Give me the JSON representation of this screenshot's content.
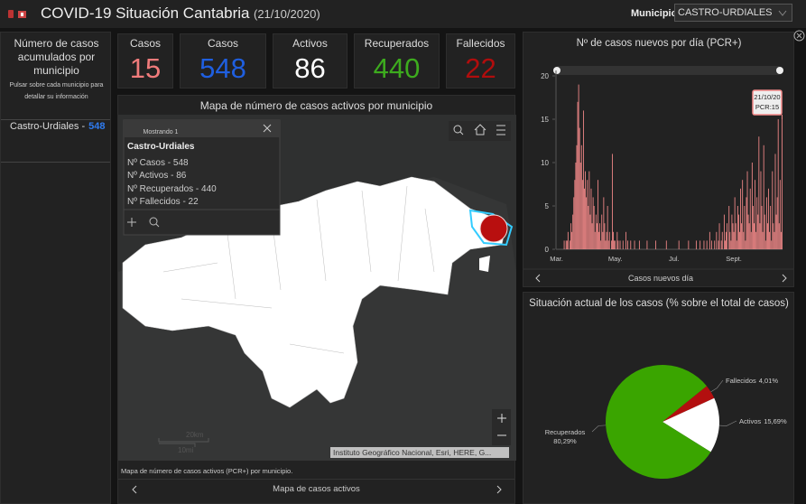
{
  "header": {
    "title": "COVID-19 Situación Cantabria",
    "date": "(21/10/2020)",
    "selector_label": "Municipio",
    "selector_value": "CASTRO-URDIALES"
  },
  "left_panel": {
    "title": "Número de casos acumulados por municipio",
    "hint": "Pulsar sobre cada municipio para detallar su información",
    "items": [
      {
        "label": "Castro-Urdiales -",
        "value": 548,
        "color": "#2f7bf0"
      }
    ]
  },
  "indicators": [
    {
      "label": "Casos",
      "value": 15,
      "color": "#f07b7b"
    },
    {
      "label": "Casos",
      "value": 548,
      "color": "#1f5fe0"
    },
    {
      "label": "Activos",
      "value": 86,
      "color": "#ffffff"
    },
    {
      "label": "Recuperados",
      "value": 440,
      "color": "#3dab1e"
    },
    {
      "label": "Fallecidos",
      "value": 22,
      "color": "#b00d0d"
    }
  ],
  "map": {
    "title": "Mapa de número de casos activos por municipio",
    "popup": {
      "header": "Mostrando 1",
      "title": "Castro-Urdiales",
      "lines": [
        "Nº Casos - 548",
        "Nº Activos - 86",
        "Nº Recuperados - 440",
        "Nº Fallecidos - 22"
      ]
    },
    "scale": [
      "20km",
      "10mi"
    ],
    "attribution": "Instituto Geográfico Nacional, Esri, HERE, G...",
    "caption": "Mapa de número de casos activos (PCR+) por municipio.",
    "footer": "Mapa de casos activos"
  },
  "chart_data": [
    {
      "type": "bar",
      "title": "Nº de casos nuevos por día (PCR+)",
      "footer": "Casos nuevos día",
      "annotation": [
        "21/10/20",
        "PCR:15"
      ],
      "color": "#f58a8a",
      "ylim": [
        0,
        20
      ],
      "yticks": [
        0,
        5,
        10,
        15,
        20
      ],
      "grid": false,
      "categories": [
        "Mar.",
        null,
        null,
        null,
        null,
        null,
        null,
        null,
        null,
        null,
        null,
        null,
        null,
        null,
        null,
        null,
        null,
        null,
        null,
        null,
        null,
        null,
        null,
        null,
        null,
        null,
        null,
        null,
        null,
        null,
        null,
        null,
        null,
        null,
        null,
        null,
        null,
        null,
        null,
        null,
        null,
        null,
        null,
        null,
        null,
        null,
        null,
        null,
        null,
        null,
        null,
        null,
        null,
        null,
        null,
        null,
        null,
        null,
        null,
        null,
        null,
        "May.",
        null,
        null,
        null,
        null,
        null,
        null,
        null,
        null,
        null,
        null,
        null,
        null,
        null,
        null,
        null,
        null,
        null,
        null,
        null,
        null,
        null,
        null,
        null,
        null,
        null,
        null,
        null,
        null,
        null,
        null,
        null,
        null,
        null,
        null,
        null,
        null,
        null,
        null,
        null,
        null,
        null,
        null,
        null,
        null,
        null,
        null,
        null,
        null,
        null,
        null,
        null,
        null,
        null,
        null,
        null,
        null,
        null,
        null,
        null,
        null,
        "Jul.",
        null,
        null,
        null,
        null,
        null,
        null,
        null,
        null,
        null,
        null,
        null,
        null,
        null,
        null,
        null,
        null,
        null,
        null,
        null,
        null,
        null,
        null,
        null,
        null,
        null,
        null,
        null,
        null,
        null,
        null,
        null,
        null,
        null,
        null,
        null,
        null,
        null,
        null,
        null,
        null,
        null,
        null,
        null,
        null,
        null,
        null,
        null,
        null,
        null,
        null,
        null,
        null,
        null,
        null,
        null,
        null,
        null,
        null,
        null,
        null,
        null,
        "Sept.",
        null,
        null,
        null,
        null,
        null,
        null,
        null,
        null,
        null,
        null,
        null,
        null,
        null,
        null,
        null,
        null,
        null,
        null,
        null,
        null,
        null,
        null,
        null,
        null,
        null,
        null,
        null,
        null,
        null,
        null,
        null,
        null,
        null,
        null,
        null,
        null,
        null,
        null,
        null,
        null,
        null,
        null,
        null,
        null,
        null,
        null,
        null,
        null,
        null,
        null
      ],
      "values": [
        0,
        0,
        0,
        0,
        0,
        0,
        0,
        0,
        1,
        0,
        1,
        1,
        2,
        0,
        1,
        3,
        2,
        4,
        6,
        8,
        10,
        12,
        17,
        19,
        14,
        10,
        12,
        8,
        16,
        7,
        9,
        6,
        8,
        5,
        9,
        4,
        7,
        3,
        6,
        5,
        2,
        4,
        3,
        8,
        2,
        3,
        1,
        4,
        2,
        6,
        3,
        1,
        2,
        5,
        1,
        2,
        0,
        1,
        11,
        2,
        1,
        1,
        0,
        2,
        1,
        0,
        1,
        0,
        0,
        1,
        0,
        0,
        2,
        0,
        1,
        0,
        0,
        1,
        0,
        0,
        0,
        1,
        0,
        0,
        0,
        0,
        1,
        0,
        0,
        0,
        0,
        0,
        0,
        0,
        1,
        0,
        0,
        0,
        0,
        0,
        0,
        0,
        0,
        1,
        0,
        0,
        0,
        0,
        0,
        0,
        0,
        0,
        0,
        0,
        1,
        0,
        0,
        0,
        0,
        0,
        0,
        0,
        0,
        0,
        0,
        0,
        0,
        1,
        0,
        0,
        0,
        0,
        0,
        0,
        0,
        0,
        0,
        1,
        0,
        0,
        0,
        0,
        0,
        0,
        0,
        1,
        0,
        0,
        0,
        1,
        0,
        0,
        0,
        1,
        0,
        0,
        1,
        0,
        0,
        2,
        0,
        1,
        0,
        0,
        1,
        0,
        2,
        0,
        1,
        3,
        0,
        1,
        2,
        0,
        4,
        1,
        2,
        3,
        0,
        5,
        2,
        1,
        4,
        3,
        2,
        6,
        3,
        1,
        5,
        4,
        2,
        7,
        3,
        8,
        2,
        5,
        1,
        6,
        9,
        4,
        3,
        7,
        2,
        10,
        5,
        3,
        8,
        2,
        6,
        4,
        13,
        3,
        9,
        5,
        2,
        12,
        4,
        1,
        6,
        3,
        7,
        2,
        5,
        1,
        9,
        3,
        2,
        11,
        4,
        6,
        15,
        3,
        8,
        2,
        15
      ]
    },
    {
      "type": "pie",
      "title": "Situación actual de los casos (% sobre el total de casos)",
      "categories": [
        "Fallecidos",
        "Activos",
        "Recuperados"
      ],
      "values": [
        4.01,
        15.69,
        80.29
      ],
      "value_labels": [
        "4,01%",
        "15,69%",
        "80,29%"
      ],
      "colors": [
        "#b30f0f",
        "#ffffff",
        "#3aa500"
      ]
    }
  ]
}
